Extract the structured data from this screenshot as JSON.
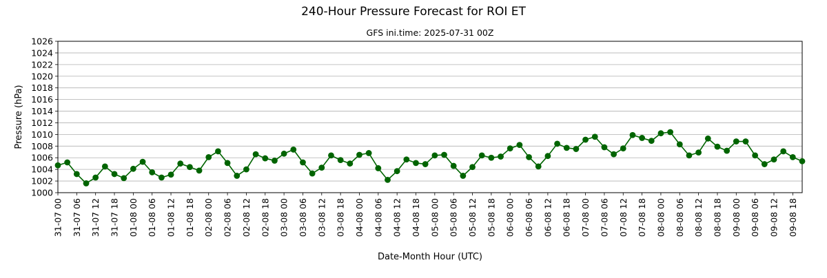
{
  "chart_data": {
    "type": "line",
    "title": "240-Hour Pressure Forecast for ROI ET",
    "subtitle": "GFS ini.time: 2025-07-31 00Z",
    "xlabel": "Date-Month Hour (UTC)",
    "ylabel": "Pressure (hPa)",
    "ylim": [
      1000,
      1026
    ],
    "yticks": [
      1000,
      1002,
      1004,
      1006,
      1008,
      1010,
      1012,
      1014,
      1016,
      1018,
      1020,
      1022,
      1024,
      1026
    ],
    "grid": "horizontal",
    "marker": "circle",
    "color": "#006400",
    "xtick_labels": [
      "31-07 00",
      "31-07 06",
      "31-07 12",
      "31-07 18",
      "01-08 00",
      "01-08 06",
      "01-08 12",
      "01-08 18",
      "02-08 00",
      "02-08 06",
      "02-08 12",
      "02-08 18",
      "03-08 00",
      "03-08 06",
      "03-08 12",
      "03-08 18",
      "04-08 00",
      "04-08 06",
      "04-08 12",
      "04-08 18",
      "05-08 00",
      "05-08 06",
      "05-08 12",
      "05-08 18",
      "06-08 00",
      "06-08 06",
      "06-08 12",
      "06-08 18",
      "07-08 00",
      "07-08 06",
      "07-08 12",
      "07-08 18",
      "08-08 00",
      "08-08 06",
      "08-08 12",
      "08-08 18",
      "09-08 00",
      "09-08 06",
      "09-08 12",
      "09-08 18"
    ],
    "x_step_hours": 3,
    "values": [
      1004.7,
      1005.2,
      1003.2,
      1001.6,
      1002.6,
      1004.5,
      1003.2,
      1002.5,
      1004.1,
      1005.3,
      1003.5,
      1002.6,
      1003.1,
      1005.0,
      1004.4,
      1003.8,
      1006.1,
      1007.1,
      1005.1,
      1002.9,
      1004.0,
      1006.6,
      1005.9,
      1005.5,
      1006.7,
      1007.4,
      1005.2,
      1003.3,
      1004.3,
      1006.4,
      1005.6,
      1005.0,
      1006.5,
      1006.8,
      1004.2,
      1002.2,
      1003.7,
      1005.7,
      1005.1,
      1004.9,
      1006.4,
      1006.5,
      1004.6,
      1002.9,
      1004.4,
      1006.4,
      1006.0,
      1006.2,
      1007.6,
      1008.2,
      1006.1,
      1004.5,
      1006.3,
      1008.4,
      1007.7,
      1007.5,
      1009.1,
      1009.6,
      1007.8,
      1006.6,
      1007.6,
      1009.9,
      1009.4,
      1008.9,
      1010.2,
      1010.4,
      1008.3,
      1006.4,
      1006.9,
      1009.3,
      1007.9,
      1007.2,
      1008.8,
      1008.8,
      1006.4,
      1004.9,
      1005.7,
      1007.1,
      1006.1,
      1005.4
    ]
  }
}
